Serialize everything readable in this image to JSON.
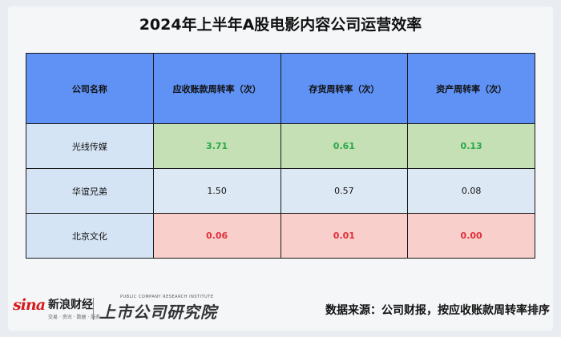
{
  "title": "2024年上半年A股电影内容公司运营效率",
  "table": {
    "headers": [
      "公司名称",
      "应收账款周转率（次）",
      "存货周转率（次）",
      "资产周转率（次）"
    ],
    "rows": [
      {
        "company": "光线传媒",
        "receivables_turnover": "3.71",
        "inventory_turnover": "0.61",
        "asset_turnover": "0.13",
        "highlight": "top"
      },
      {
        "company": "华谊兄弟",
        "receivables_turnover": "1.50",
        "inventory_turnover": "0.57",
        "asset_turnover": "0.08",
        "highlight": "none"
      },
      {
        "company": "北京文化",
        "receivables_turnover": "0.06",
        "inventory_turnover": "0.01",
        "asset_turnover": "0.00",
        "highlight": "bottom"
      }
    ]
  },
  "colors": {
    "header_bg": "#5f92f4",
    "top_row_bg": "#c5e0b4",
    "top_row_text": "#2aa84a",
    "bottom_row_bg": "#f8cfcb",
    "bottom_row_text": "#e0303a",
    "name_cell_bg": "#d5e4f5"
  },
  "footer": {
    "sina_logo": "sina",
    "sina_name": "新浪财经",
    "sina_tagline": "交易 · 资讯 · 数据 · 服务",
    "institute_tagline": "PUBLIC COMPANY RESEARCH INSTITUTE",
    "institute_name": "上市公司研究院",
    "source": "数据来源：公司财报，按应收账款周转率排序"
  }
}
